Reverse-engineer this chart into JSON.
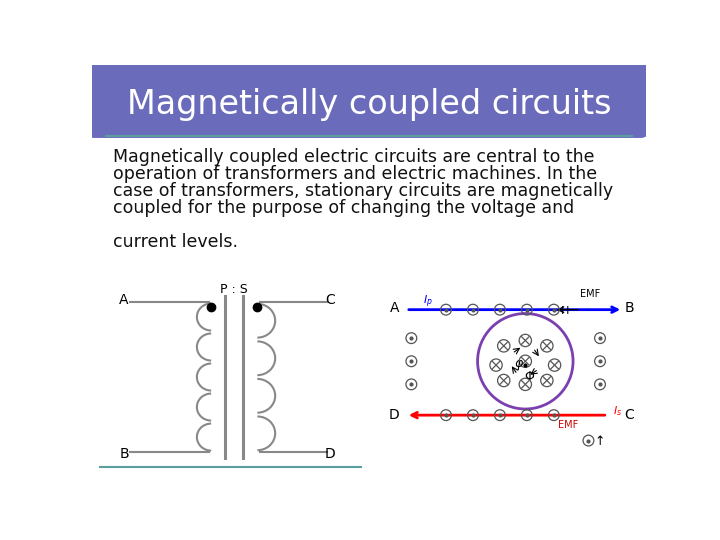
{
  "title": "Magnetically coupled circuits",
  "title_bg": "#6B6BBB",
  "title_text_color": "#FFFFFF",
  "slide_bg": "#FFFFFF",
  "border_color": "#5A9E9E",
  "body_text_color": "#111111",
  "body_fontsize": 12.5,
  "body_lines": [
    "Magnetically coupled electric circuits are central to the",
    "operation of transformers and electric machines. In the",
    "case of transformers, stationary circuits are magnetically",
    "coupled for the purpose of changing the voltage and",
    "",
    "current levels."
  ]
}
